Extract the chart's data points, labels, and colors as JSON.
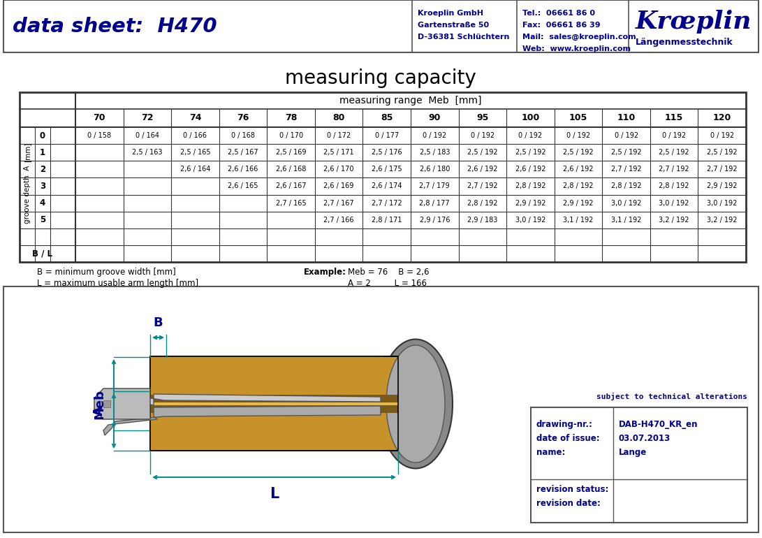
{
  "bg_color": "#ffffff",
  "navy": "#00008B",
  "black": "#000000",
  "teal": "#008B8B",
  "gold": "#C8922A",
  "dark_gold": "#7A5A18",
  "gray1": "#999999",
  "gray2": "#BBBBBB",
  "gray3": "#CCCCCC",
  "gray4": "#777777",
  "dark_gray": "#444444",
  "header_title": "data sheet:  H470",
  "company_line1": "Kroeplin GmbH",
  "company_line2": "Gartenstraße 50",
  "company_line3": "D-36381 Schlüchtern",
  "contact_line1": "Tel.:  06661 86 0",
  "contact_line2": "Fax:  06661 86 39",
  "contact_line3": "Mail:  sales@kroeplin.com",
  "contact_line4": "Web:  www.kroeplin.com",
  "brand_name": "Krœplin",
  "brand_sub": "Längenmesstechnik",
  "main_title": "measuring capacity",
  "meb_label": "measuring range  Meb  [mm]",
  "col_headers": [
    "70",
    "72",
    "74",
    "76",
    "78",
    "80",
    "85",
    "90",
    "95",
    "100",
    "105",
    "110",
    "115",
    "120"
  ],
  "row_headers": [
    "0",
    "1",
    "2",
    "3",
    "4",
    "5",
    "",
    "B / L"
  ],
  "table_data": [
    [
      "0 / 158",
      "0 / 164",
      "0 / 166",
      "0 / 168",
      "0 / 170",
      "0 / 172",
      "0 / 177",
      "0 / 192",
      "0 / 192",
      "0 / 192",
      "0 / 192",
      "0 / 192",
      "0 / 192",
      "0 / 192"
    ],
    [
      "",
      "2,5 / 163",
      "2,5 / 165",
      "2,5 / 167",
      "2,5 / 169",
      "2,5 / 171",
      "2,5 / 176",
      "2,5 / 183",
      "2,5 / 192",
      "2,5 / 192",
      "2,5 / 192",
      "2,5 / 192",
      "2,5 / 192",
      "2,5 / 192"
    ],
    [
      "",
      "",
      "2,6 / 164",
      "2,6 / 166",
      "2,6 / 168",
      "2,6 / 170",
      "2,6 / 175",
      "2,6 / 180",
      "2,6 / 192",
      "2,6 / 192",
      "2,6 / 192",
      "2,7 / 192",
      "2,7 / 192",
      "2,7 / 192"
    ],
    [
      "",
      "",
      "",
      "2,6 / 165",
      "2,6 / 167",
      "2,6 / 169",
      "2,6 / 174",
      "2,7 / 179",
      "2,7 / 192",
      "2,8 / 192",
      "2,8 / 192",
      "2,8 / 192",
      "2,8 / 192",
      "2,9 / 192"
    ],
    [
      "",
      "",
      "",
      "",
      "2,7 / 165",
      "2,7 / 167",
      "2,7 / 172",
      "2,8 / 177",
      "2,8 / 192",
      "2,9 / 192",
      "2,9 / 192",
      "3,0 / 192",
      "3,0 / 192",
      "3,0 / 192"
    ],
    [
      "",
      "",
      "",
      "",
      "",
      "2,7 / 166",
      "2,8 / 171",
      "2,9 / 176",
      "2,9 / 183",
      "3,0 / 192",
      "3,1 / 192",
      "3,1 / 192",
      "3,2 / 192",
      "3,2 / 192"
    ],
    [
      "",
      "",
      "",
      "",
      "",
      "",
      "",
      "",
      "",
      "",
      "",
      "",
      "",
      ""
    ],
    [
      "",
      "",
      "",
      "",
      "",
      "",
      "",
      "",
      "",
      "",
      "",
      "",
      "",
      ""
    ]
  ],
  "note1": "B = minimum groove width [mm]",
  "note2": "L = maximum usable arm length [mm]",
  "example_label": "Example:",
  "example_line1": "Meb = 76    B = 2,6",
  "example_line2": "A = 2         L = 166",
  "subject_text": "subject to technical alterations",
  "drawing_nr_label": "drawing-nr.:",
  "drawing_nr_val": "DAB-H470_KR_en",
  "date_label": "date of issue:",
  "date_val": "03.07.2013",
  "name_label": "name:",
  "name_val": "Lange",
  "rev_status": "revision status:",
  "rev_date": "revision date:"
}
